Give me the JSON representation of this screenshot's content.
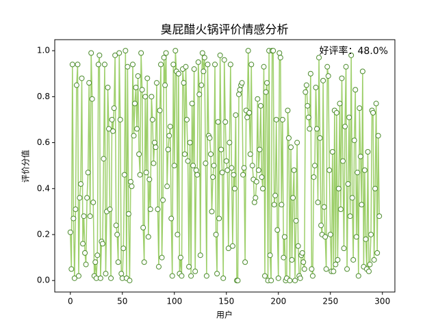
{
  "chart_data": {
    "type": "line",
    "title": "臭屁醋火锅评价情感分析",
    "xlabel": "用户",
    "ylabel": "评价分值",
    "annotation": "好评率：48.0%",
    "line_color": "#9dcf6a",
    "marker_edge": "#4a8a2a",
    "marker_fill": "#ffffff",
    "xlim": [
      -15,
      312
    ],
    "ylim": [
      -0.05,
      1.048
    ],
    "xticks": [
      0,
      50,
      100,
      150,
      200,
      250,
      300
    ],
    "yticks": [
      {
        "value": 0,
        "label": "0.0"
      },
      {
        "value": 0.2,
        "label": "0.2"
      },
      {
        "value": 0.4,
        "label": "0.4"
      },
      {
        "value": 0.6,
        "label": "0.6"
      },
      {
        "value": 0.8,
        "label": "0.8"
      },
      {
        "value": 1,
        "label": "1.0"
      }
    ],
    "x": [
      0,
      1,
      2,
      3,
      4,
      5,
      6,
      7,
      8,
      9,
      10,
      11,
      12,
      13,
      14,
      15,
      16,
      17,
      18,
      19,
      20,
      21,
      22,
      23,
      24,
      25,
      26,
      27,
      28,
      29,
      30,
      31,
      32,
      33,
      34,
      35,
      36,
      37,
      38,
      39,
      40,
      41,
      42,
      43,
      44,
      45,
      46,
      47,
      48,
      49,
      50,
      51,
      52,
      53,
      54,
      55,
      56,
      57,
      58,
      59,
      60,
      61,
      62,
      63,
      64,
      65,
      66,
      67,
      68,
      69,
      70,
      71,
      72,
      73,
      74,
      75,
      76,
      77,
      78,
      79,
      80,
      81,
      82,
      83,
      84,
      85,
      86,
      87,
      88,
      89,
      90,
      91,
      92,
      93,
      94,
      95,
      96,
      97,
      98,
      99,
      100,
      101,
      102,
      103,
      104,
      105,
      106,
      107,
      108,
      109,
      110,
      111,
      112,
      113,
      114,
      115,
      116,
      117,
      118,
      119,
      120,
      121,
      122,
      123,
      124,
      125,
      126,
      127,
      128,
      129,
      130,
      131,
      132,
      133,
      134,
      135,
      136,
      137,
      138,
      139,
      140,
      141,
      142,
      143,
      144,
      145,
      146,
      147,
      148,
      149,
      150,
      151,
      152,
      153,
      154,
      155,
      156,
      157,
      158,
      159,
      160,
      161,
      162,
      163,
      164,
      165,
      166,
      167,
      168,
      169,
      170,
      171,
      172,
      173,
      174,
      175,
      176,
      177,
      178,
      179,
      180,
      181,
      182,
      183,
      184,
      185,
      186,
      187,
      188,
      189,
      190,
      191,
      192,
      193,
      194,
      195,
      196,
      197,
      198,
      199,
      200,
      201,
      202,
      203,
      204,
      205,
      206,
      207,
      208,
      209,
      210,
      211,
      212,
      213,
      214,
      215,
      216,
      217,
      218,
      219,
      220,
      221,
      222,
      223,
      224,
      225,
      226,
      227,
      228,
      229,
      230,
      231,
      232,
      233,
      234,
      235,
      236,
      237,
      238,
      239,
      240,
      241,
      242,
      243,
      244,
      245,
      246,
      247,
      248,
      249,
      250,
      251,
      252,
      253,
      254,
      255,
      256,
      257,
      258,
      259,
      260,
      261,
      262,
      263,
      264,
      265,
      266,
      267,
      268,
      269,
      270,
      271,
      272,
      273,
      274,
      275,
      276,
      277,
      278,
      279,
      280,
      281,
      282,
      283,
      284,
      285,
      286,
      287,
      288,
      289,
      290,
      291,
      292,
      293,
      294,
      295,
      296,
      297
    ],
    "values": [
      0.21,
      0.05,
      0.94,
      0.27,
      0.01,
      0.31,
      0.85,
      0.94,
      0.02,
      0.36,
      0.42,
      0.88,
      0.16,
      0.28,
      0.12,
      0.07,
      0.36,
      0.47,
      0.86,
      0.28,
      0.99,
      0.79,
      0.34,
      0.02,
      0.08,
      0.01,
      0.11,
      0.94,
      0.98,
      0.01,
      0.17,
      0.16,
      0.53,
      0.94,
      0.03,
      0.3,
      0.84,
      0.66,
      0.31,
      0.01,
      0.7,
      0.65,
      0.75,
      0.98,
      0.24,
      0.2,
      0.08,
      0.99,
      0.7,
      0.03,
      0.01,
      0.14,
      0.46,
      1.0,
      0.01,
      0.93,
      0.29,
      0.0,
      0.43,
      0.41,
      0.94,
      0.63,
      0.77,
      0.84,
      0.66,
      0.89,
      0.55,
      0.46,
      0.99,
      0.83,
      0.23,
      0.08,
      0.8,
      0.47,
      0.88,
      0.19,
      0.44,
      0.31,
      0.8,
      0.7,
      0.51,
      0.6,
      0.58,
      0.86,
      0.31,
      0.06,
      0.74,
      0.94,
      0.1,
      0.35,
      0.97,
      0.85,
      0.99,
      0.41,
      0.57,
      0.63,
      0.67,
      0.27,
      0.02,
      0.94,
      0.5,
      1.0,
      0.91,
      0.2,
      0.9,
      0.03,
      0.1,
      0.02,
      0.92,
      0.86,
      0.55,
      0.93,
      0.7,
      0.52,
      0.06,
      0.6,
      0.02,
      0.77,
      0.5,
      0.92,
      0.04,
      0.48,
      0.46,
      0.95,
      0.81,
      0.11,
      0.85,
      0.99,
      0.91,
      0.97,
      0.51,
      0.02,
      0.94,
      0.63,
      0.62,
      0.55,
      0.3,
      0.45,
      0.5,
      0.94,
      0.2,
      0.03,
      0.69,
      0.27,
      0.98,
      0.57,
      0.47,
      0.01,
      0.96,
      0.69,
      0.52,
      0.48,
      0.14,
      0.6,
      0.94,
      0.49,
      0.15,
      0.46,
      0.4,
      0.72,
      0.0,
      0.0,
      0.81,
      0.83,
      0.85,
      0.86,
      0.46,
      0.49,
      0.08,
      0.74,
      0.71,
      1.0,
      0.73,
      0.55,
      0.94,
      0.5,
      0.44,
      0.34,
      0.36,
      0.43,
      0.79,
      0.48,
      0.57,
      0.76,
      0.45,
      0.4,
      0.93,
      0.02,
      0.82,
      0.86,
      0.0,
      1.0,
      0.11,
      0.0,
      1.0,
      1.0,
      0.33,
      0.37,
      0.7,
      0.22,
      0.01,
      0.99,
      0.97,
      0.33,
      0.7,
      0.1,
      0.19,
      0.0,
      0.01,
      0.74,
      0.62,
      0.0,
      0.58,
      0.09,
      0.36,
      0.48,
      0.0,
      0.26,
      0.6,
      0.15,
      0.02,
      0.01,
      0.11,
      0.12,
      0.08,
      0.05,
      0.82,
      0.85,
      0.76,
      0.71,
      0.66,
      0.9,
      0.05,
      0.02,
      0.45,
      0.5,
      0.84,
      0.66,
      0.34,
      0.97,
      0.62,
      0.24,
      0.2,
      0.87,
      0.32,
      0.19,
      0.05,
      0.93,
      0.89,
      0.48,
      0.2,
      0.04,
      0.56,
      0.04,
      0.74,
      0.07,
      0.73,
      0.09,
      0.4,
      0.77,
      0.31,
      0.88,
      0.52,
      0.14,
      0.67,
      0.93,
      0.05,
      0.42,
      0.71,
      0.28,
      0.98,
      0.36,
      0.09,
      0.61,
      0.83,
      0.19,
      0.47,
      0.02,
      0.75,
      0.54,
      0.33,
      0.91,
      0.06,
      0.48,
      0.18,
      0.05,
      0.56,
      0.04,
      0.07,
      0.2,
      0.74,
      0.73,
      0.09,
      0.4,
      0.77,
      0.12,
      0.63,
      0.28
    ]
  }
}
